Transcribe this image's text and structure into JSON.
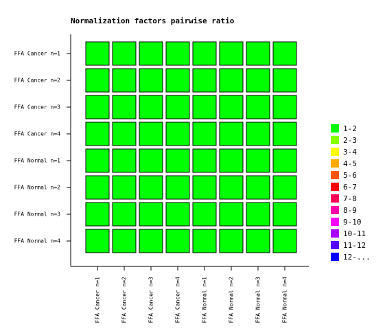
{
  "chart_data": {
    "type": "heatmap",
    "title": "Normalization factors pairwise ratio",
    "rows": [
      "FFA Cancer n=1",
      "FFA Cancer n=2",
      "FFA Cancer n=3",
      "FFA Cancer n=4",
      "FFA Normal n=1",
      "FFA Normal n=2",
      "FFA Normal n=3",
      "FFA Normal n=4"
    ],
    "columns": [
      "FFA Cancer n=1",
      "FFA Cancer n=2",
      "FFA Cancer n=3",
      "FFA Cancer n=4",
      "FFA Normal n=1",
      "FFA Normal n=2",
      "FFA Normal n=3",
      "FFA Normal n=4"
    ],
    "values": [
      [
        1,
        1,
        1,
        1,
        1,
        1,
        1,
        1
      ],
      [
        1,
        1,
        1,
        1,
        1,
        1,
        1,
        1
      ],
      [
        1,
        1,
        1,
        1,
        1,
        1,
        1,
        1
      ],
      [
        1,
        1,
        1,
        1,
        1,
        1,
        1,
        1
      ],
      [
        1,
        1,
        1,
        1,
        1,
        1,
        1,
        1
      ],
      [
        1,
        1,
        1,
        1,
        1,
        1,
        1,
        1
      ],
      [
        1,
        1,
        1,
        1,
        1,
        1,
        1,
        1
      ],
      [
        1,
        1,
        1,
        1,
        1,
        1,
        1,
        1
      ]
    ],
    "legend": [
      {
        "label": "1-2",
        "color": "#00ff00"
      },
      {
        "label": "2-3",
        "color": "#88ff00"
      },
      {
        "label": "3-4",
        "color": "#ffff00"
      },
      {
        "label": "4-5",
        "color": "#ffaa00"
      },
      {
        "label": "5-6",
        "color": "#ff5500"
      },
      {
        "label": "6-7",
        "color": "#ff0000"
      },
      {
        "label": "7-8",
        "color": "#ff0055"
      },
      {
        "label": "8-9",
        "color": "#ff00aa"
      },
      {
        "label": "9-10",
        "color": "#ff00ff"
      },
      {
        "label": "10-11",
        "color": "#aa00ff"
      },
      {
        "label": "11-12",
        "color": "#5500ff"
      },
      {
        "label": "12-...",
        "color": "#0000ff"
      }
    ]
  }
}
